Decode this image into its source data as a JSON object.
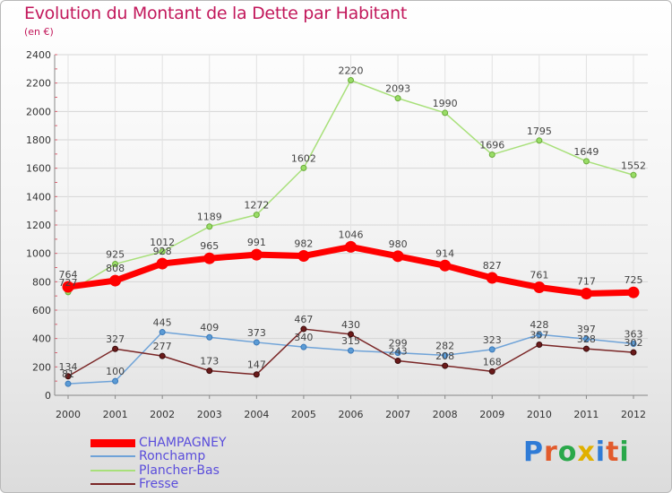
{
  "title": "Evolution du Montant de la Dette par Habitant",
  "subtitle": "(en €)",
  "logo": {
    "text": "Proxiti",
    "letter_colors": [
      "#2f7bd6",
      "#e25b2c",
      "#2aa84a",
      "#e0b000",
      "#2f7bd6",
      "#e25b2c",
      "#2aa84a"
    ]
  },
  "chart_data": {
    "type": "line",
    "title": "Evolution du Montant de la Dette par Habitant",
    "subtitle": "(en €)",
    "xlabel": "",
    "ylabel": "",
    "x": [
      "2000",
      "2001",
      "2002",
      "2003",
      "2004",
      "2005",
      "2006",
      "2007",
      "2008",
      "2009",
      "2010",
      "2011",
      "2012"
    ],
    "ylim": [
      0,
      2400
    ],
    "yticks": [
      0,
      200,
      400,
      600,
      800,
      1000,
      1200,
      1400,
      1600,
      1800,
      2000,
      2200,
      2400
    ],
    "grid": true,
    "legend_placement": "bottom-left",
    "series": [
      {
        "name": "CHAMPAGNEY",
        "color": "#ff0000",
        "values": [
          764,
          808,
          928,
          965,
          991,
          982,
          1046,
          980,
          914,
          827,
          761,
          717,
          725
        ]
      },
      {
        "name": "Ronchamp",
        "color": "#5b9bd5",
        "values": [
          81,
          100,
          445,
          409,
          373,
          340,
          315,
          299,
          282,
          323,
          428,
          397,
          363
        ]
      },
      {
        "name": "Plancher-Bas",
        "color": "#99dd66",
        "values": [
          727,
          925,
          1012,
          1189,
          1272,
          1602,
          2220,
          2093,
          1990,
          1696,
          1795,
          1649,
          1552
        ]
      },
      {
        "name": "Fresse",
        "color": "#6b1a1a",
        "values": [
          134,
          327,
          277,
          173,
          147,
          467,
          430,
          243,
          208,
          168,
          357,
          328,
          302
        ]
      }
    ]
  }
}
